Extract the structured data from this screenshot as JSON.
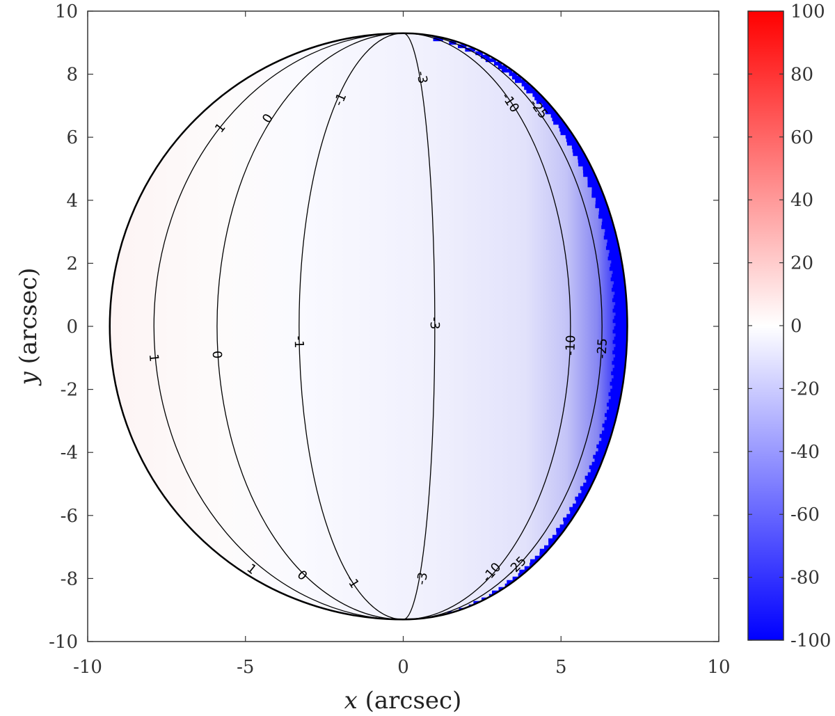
{
  "chart_data": {
    "type": "heatmap",
    "title": "",
    "xlabel_var": "x",
    "xlabel_unit": " (arcsec)",
    "ylabel_var": "y",
    "ylabel_unit": " (arcsec)",
    "xlim": [
      -10,
      10
    ],
    "ylim": [
      -10,
      10
    ],
    "x_ticks": [
      -10,
      -5,
      0,
      5,
      10
    ],
    "y_ticks": [
      10,
      8,
      6,
      4,
      2,
      0,
      -2,
      -4,
      -6,
      -8,
      -10
    ],
    "x_tick_labels": [
      "-10",
      "-5",
      "0",
      "5",
      "10"
    ],
    "y_tick_labels": [
      "10",
      "8",
      "6",
      "4",
      "2",
      "0",
      "-2",
      "-4",
      "-6",
      "-8",
      "-10"
    ],
    "grid": false,
    "colormap": {
      "low": "#0000ff",
      "mid": "#ffffff",
      "high": "#ff0000"
    },
    "colorbar": {
      "range": [
        -100,
        100
      ],
      "ticks": [
        100,
        80,
        60,
        40,
        20,
        0,
        -20,
        -40,
        -60,
        -80,
        -100
      ],
      "tick_labels": [
        "100",
        "80",
        "60",
        "40",
        "20",
        "0",
        "-20",
        "-40",
        "-60",
        "-80",
        "-100"
      ],
      "position": "right"
    },
    "disk": {
      "center": [
        0,
        0
      ],
      "pole_y": 9.3,
      "left_x": -9.3,
      "right_x": 7.1
    },
    "contours": [
      {
        "level": 1,
        "label": "1",
        "x_at_equator": -7.9,
        "label_positions": [
          [
            -5.8,
            6.3
          ],
          [
            -7.9,
            -1.0
          ],
          [
            -4.8,
            -7.7
          ]
        ]
      },
      {
        "level": 0,
        "label": "0",
        "x_at_equator": -5.9,
        "label_positions": [
          [
            -4.3,
            6.6
          ],
          [
            -5.9,
            -0.9
          ],
          [
            -3.2,
            -7.9
          ]
        ]
      },
      {
        "level": -1,
        "label": "-1",
        "x_at_equator": -3.3,
        "label_positions": [
          [
            -2.0,
            7.2
          ],
          [
            -3.3,
            -0.5
          ],
          [
            -1.6,
            -8.1
          ]
        ]
      },
      {
        "level": -3,
        "label": "-3",
        "x_at_equator": 1.0,
        "label_positions": [
          [
            0.6,
            7.9
          ],
          [
            1.0,
            0.1
          ],
          [
            0.6,
            -8.0
          ]
        ]
      },
      {
        "level": -10,
        "label": "-10",
        "x_at_equator": 5.3,
        "label_positions": [
          [
            3.4,
            7.1
          ],
          [
            5.3,
            -0.6
          ],
          [
            2.8,
            -7.8
          ]
        ]
      },
      {
        "level": -25,
        "label": "-25",
        "x_at_equator": 6.3,
        "label_positions": [
          [
            4.3,
            6.9
          ],
          [
            6.3,
            -0.7
          ],
          [
            3.6,
            -7.6
          ]
        ]
      }
    ]
  }
}
